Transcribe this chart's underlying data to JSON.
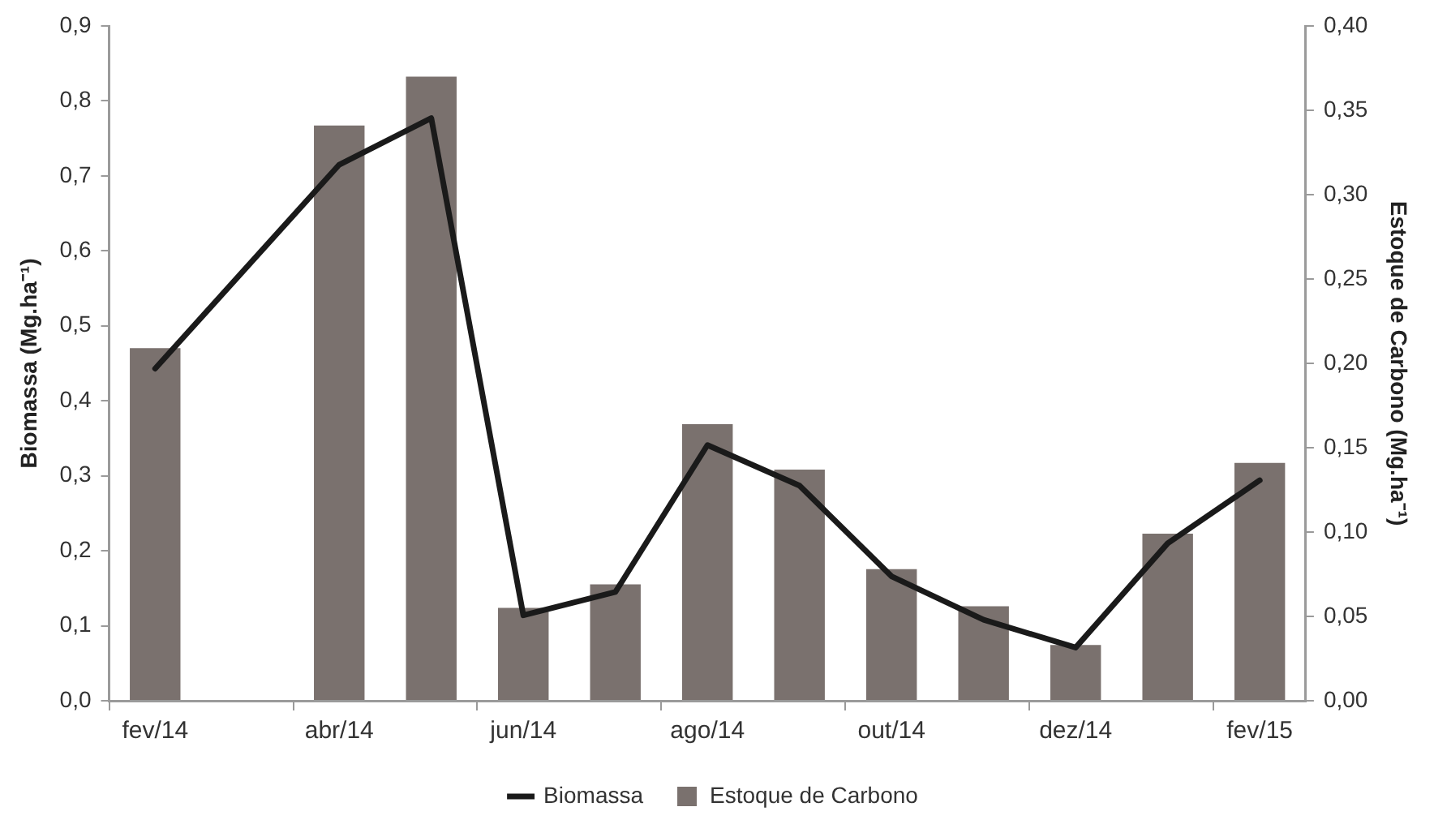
{
  "chart_data": {
    "type": "bar",
    "ylabel": "Biomassa (Mg.ha⁻¹)",
    "y2label": "Estoque de Carbono (Mg.ha⁻¹)",
    "categories": [
      "fev/14",
      null,
      "abr/14",
      null,
      "jun/14",
      null,
      "ago/14",
      null,
      "out/14",
      null,
      "dez/14",
      null,
      "fev/15"
    ],
    "series": [
      {
        "name": "Biomassa",
        "type": "line",
        "color": "#1a1a1a",
        "axis": "y",
        "values": [
          0.443,
          null,
          0.715,
          0.777,
          0.114,
          0.145,
          0.341,
          0.287,
          0.166,
          0.108,
          0.071,
          0.21,
          0.294
        ]
      },
      {
        "name": "Estoque de Carbono",
        "color": "#7a716e",
        "axis": "y2",
        "values": [
          0.209,
          null,
          0.341,
          0.37,
          0.055,
          0.069,
          0.164,
          0.137,
          0.078,
          0.056,
          0.033,
          0.099,
          0.141
        ]
      }
    ],
    "ylim": [
      0,
      0.9
    ],
    "yticks": [
      {
        "value": 0,
        "label": "0,0"
      },
      {
        "value": 0.1,
        "label": "0,1"
      },
      {
        "value": 0.2,
        "label": "0,2"
      },
      {
        "value": 0.3,
        "label": "0,3"
      },
      {
        "value": 0.4,
        "label": "0,4"
      },
      {
        "value": 0.5,
        "label": "0,5"
      },
      {
        "value": 0.6,
        "label": "0,6"
      },
      {
        "value": 0.7,
        "label": "0,7"
      },
      {
        "value": 0.8,
        "label": "0,8"
      },
      {
        "value": 0.9,
        "label": "0,9"
      }
    ],
    "y2lim": [
      0,
      0.4
    ],
    "y2ticks": [
      {
        "value": 0,
        "label": "0,00"
      },
      {
        "value": 0.05,
        "label": "0,05"
      },
      {
        "value": 0.1,
        "label": "0,10"
      },
      {
        "value": 0.15,
        "label": "0,15"
      },
      {
        "value": 0.2,
        "label": "0,20"
      },
      {
        "value": 0.25,
        "label": "0,25"
      },
      {
        "value": 0.3,
        "label": "0,30"
      },
      {
        "value": 0.35,
        "label": "0,35"
      },
      {
        "value": 0.4,
        "label": "0,40"
      }
    ],
    "grid": false,
    "legend": "bottom",
    "line_style": "solid"
  }
}
